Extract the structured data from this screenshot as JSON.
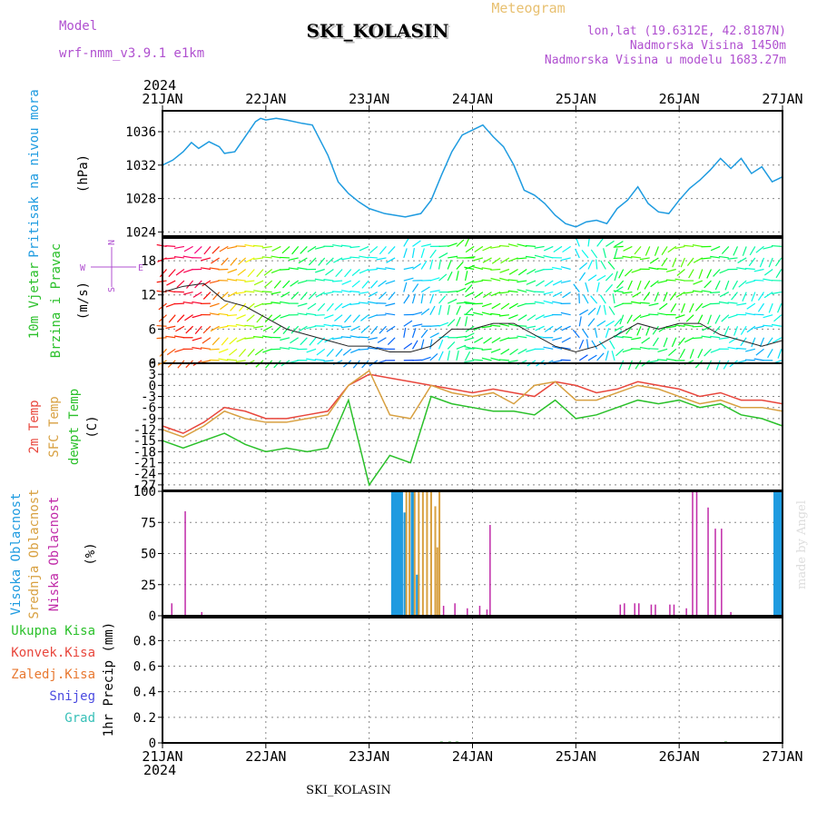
{
  "header": {
    "model_label": "Model",
    "model_name": "wrf-nmm_v3.9.1 e1km",
    "station": "SKI_KOLASIN",
    "product": "Meteogram",
    "lonlat": "lon,lat (19.6312E, 42.8187N)",
    "elevation": "Nadmorska Visina 1450m",
    "model_elevation": "Nadmorska Visina u modelu 1683.27m",
    "year_top": "2024",
    "year_bottom": "2024",
    "footer_station": "SKI_KOLASIN",
    "credit": "made by Angel"
  },
  "time_axis": {
    "labels": [
      "21JAN",
      "22JAN",
      "23JAN",
      "24JAN",
      "25JAN",
      "26JAN",
      "27JAN"
    ],
    "days": 6
  },
  "colors": {
    "pressure": "#1e9be0",
    "temp2m": "#e8463c",
    "sfc": "#d8a040",
    "dewpt": "#2ac02a",
    "high_cloud": "#1e9be0",
    "mid_cloud": "#d8a040",
    "low_cloud": "#c02aa8",
    "title_purple": "#b050d0",
    "meteogram_gold": "#e8c070"
  },
  "chart_data": [
    {
      "id": "pressure",
      "type": "line",
      "ylabel_lines": [
        "Pritisak na nivou mora",
        "(hPa)"
      ],
      "ylim": [
        1023.5,
        1038.5
      ],
      "yticks": [
        1024,
        1028,
        1032,
        1036
      ],
      "grid": true,
      "series": [
        {
          "x": [
            0,
            0.1,
            0.2,
            0.28,
            0.35,
            0.45,
            0.55,
            0.6,
            0.7,
            0.8,
            0.9,
            0.95,
            1.0,
            1.1,
            1.2,
            1.35,
            1.45,
            1.5,
            1.6,
            1.7,
            1.8,
            1.9,
            2.0,
            2.15,
            2.25,
            2.35,
            2.5,
            2.6,
            2.7,
            2.8,
            2.9,
            3.0,
            3.1,
            3.2,
            3.3,
            3.4,
            3.5,
            3.6,
            3.7,
            3.8,
            3.9,
            4.0,
            4.1,
            4.2,
            4.3,
            4.4,
            4.5,
            4.6,
            4.7,
            4.8,
            4.9,
            5.0,
            5.1,
            5.2,
            5.3,
            5.4,
            5.5,
            5.6,
            5.7,
            5.8,
            5.9,
            6.0
          ],
          "values": [
            1032.0,
            1032.6,
            1033.6,
            1034.7,
            1034.0,
            1034.8,
            1034.2,
            1033.4,
            1033.6,
            1035.4,
            1037.2,
            1037.6,
            1037.4,
            1037.6,
            1037.4,
            1037.0,
            1036.8,
            1035.6,
            1033.2,
            1030.0,
            1028.6,
            1027.6,
            1026.8,
            1026.2,
            1026.0,
            1025.8,
            1026.2,
            1027.8,
            1030.8,
            1033.6,
            1035.6,
            1036.2,
            1036.8,
            1035.4,
            1034.2,
            1032.0,
            1029.0,
            1028.4,
            1027.4,
            1026.0,
            1025.0,
            1024.6,
            1025.2,
            1025.4,
            1025.0,
            1026.8,
            1027.8,
            1029.4,
            1027.4,
            1026.4,
            1026.2,
            1027.8,
            1029.2,
            1030.2,
            1031.4,
            1032.8,
            1031.6,
            1032.8,
            1031.0,
            1031.8,
            1030.0,
            1030.6
          ]
        }
      ]
    },
    {
      "id": "wind",
      "type": "line",
      "ylabel_lines": [
        "10m Vjetar",
        "Brzina i Pravac",
        "(m/s)"
      ],
      "compass": {
        "n": "N",
        "w": "W",
        "e": "E",
        "s": "S"
      },
      "ylim": [
        0,
        22
      ],
      "yticks": [
        0,
        6,
        12,
        18
      ],
      "grid": true,
      "series": [
        {
          "name": "speed",
          "x": [
            0,
            0.2,
            0.4,
            0.6,
            0.8,
            1.0,
            1.2,
            1.4,
            1.6,
            1.8,
            2.0,
            2.2,
            2.4,
            2.6,
            2.8,
            3.0,
            3.2,
            3.4,
            3.6,
            3.8,
            4.0,
            4.2,
            4.4,
            4.6,
            4.8,
            5.0,
            5.2,
            5.4,
            5.6,
            5.8,
            6.0
          ],
          "values": [
            12.5,
            13.5,
            14,
            11,
            10,
            8,
            6,
            5,
            4,
            3,
            3,
            2,
            2,
            3,
            6,
            6,
            7,
            7,
            5,
            3,
            2,
            3,
            5,
            7,
            6,
            7,
            7,
            5,
            4,
            3,
            4
          ]
        }
      ]
    },
    {
      "id": "temperature",
      "type": "line",
      "ylabel_lines": [
        "2m Temp",
        "SFC Temp",
        "dewpt Temp",
        "(C)"
      ],
      "ylim": [
        -28.5,
        6
      ],
      "yticks": [
        -27,
        -24,
        -21,
        -18,
        -15,
        -12,
        -9,
        -6,
        -3,
        0,
        3,
        6
      ],
      "grid": true,
      "series": [
        {
          "name": "2m Temp",
          "x": [
            0,
            0.2,
            0.4,
            0.6,
            0.8,
            1.0,
            1.2,
            1.4,
            1.6,
            1.8,
            2.0,
            2.2,
            2.4,
            2.6,
            2.8,
            3.0,
            3.2,
            3.4,
            3.6,
            3.8,
            4.0,
            4.2,
            4.4,
            4.6,
            4.8,
            5.0,
            5.2,
            5.4,
            5.6,
            5.8,
            6.0
          ],
          "values": [
            -11,
            -13,
            -10,
            -6,
            -7,
            -9,
            -9,
            -8,
            -7,
            0,
            3,
            2,
            1,
            0,
            -1,
            -2,
            -1,
            -2,
            -3,
            1,
            0,
            -2,
            -1,
            1,
            0,
            -1,
            -3,
            -2,
            -4,
            -4,
            -5
          ]
        },
        {
          "name": "SFC Temp",
          "x": [
            0,
            0.2,
            0.4,
            0.6,
            0.8,
            1.0,
            1.2,
            1.4,
            1.6,
            1.8,
            2.0,
            2.2,
            2.4,
            2.6,
            2.8,
            3.0,
            3.2,
            3.4,
            3.6,
            3.8,
            4.0,
            4.2,
            4.4,
            4.6,
            4.8,
            5.0,
            5.2,
            5.4,
            5.6,
            5.8,
            6.0
          ],
          "values": [
            -12,
            -14,
            -11,
            -7,
            -9,
            -10,
            -10,
            -9,
            -8,
            0,
            4,
            -8,
            -9,
            0,
            -2,
            -3,
            -2,
            -5,
            0,
            1,
            -4,
            -4,
            -2,
            0,
            -1,
            -3,
            -5,
            -4,
            -6,
            -6,
            -7
          ]
        },
        {
          "name": "dewpt Temp",
          "x": [
            0,
            0.2,
            0.4,
            0.6,
            0.8,
            1.0,
            1.2,
            1.4,
            1.6,
            1.8,
            2.0,
            2.2,
            2.4,
            2.6,
            2.8,
            3.0,
            3.2,
            3.4,
            3.6,
            3.8,
            4.0,
            4.2,
            4.4,
            4.6,
            4.8,
            5.0,
            5.2,
            5.4,
            5.6,
            5.8,
            6.0
          ],
          "values": [
            -15,
            -17,
            -15,
            -13,
            -16,
            -18,
            -17,
            -18,
            -17,
            -4,
            -27,
            -19,
            -21,
            -3,
            -5,
            -6,
            -7,
            -7,
            -8,
            -4,
            -9,
            -8,
            -6,
            -4,
            -5,
            -4,
            -6,
            -5,
            -8,
            -9,
            -11
          ]
        }
      ]
    },
    {
      "id": "clouds",
      "type": "bar",
      "ylabel_lines": [
        "Visoka Oblacnost",
        "Srednja Oblacnost",
        "Niska Oblacnost",
        "(%)"
      ],
      "ylim": [
        0,
        100
      ],
      "yticks": [
        0,
        25,
        50,
        75,
        100
      ],
      "grid": true,
      "series": [
        {
          "name": "Visoka Oblacnost",
          "x": [
            2.23,
            2.25,
            2.27,
            2.29,
            2.31,
            2.35,
            2.42,
            2.47,
            3.12,
            5.93,
            5.95,
            5.97,
            5.99
          ],
          "values": [
            100,
            100,
            100,
            100,
            100,
            83,
            100,
            33,
            0,
            100,
            100,
            100,
            100
          ]
        },
        {
          "name": "Srednja Oblacnost",
          "x": [
            2.36,
            2.39,
            2.44,
            2.48,
            2.52,
            2.56,
            2.6,
            2.64,
            2.66,
            2.68
          ],
          "values": [
            100,
            100,
            100,
            100,
            100,
            100,
            100,
            88,
            55,
            100
          ]
        },
        {
          "name": "Niska Oblacnost",
          "x": [
            0.09,
            0.22,
            0.38,
            2.72,
            2.83,
            2.95,
            3.07,
            3.14,
            3.17,
            4.43,
            4.47,
            4.57,
            4.61,
            4.73,
            4.77,
            4.91,
            4.95,
            5.07,
            5.13,
            5.17,
            5.28,
            5.35,
            5.41,
            5.5
          ],
          "values": [
            10,
            84,
            3,
            8,
            10,
            6,
            8,
            5,
            73,
            9,
            10,
            10,
            10,
            9,
            9,
            9,
            9,
            6,
            100,
            100,
            87,
            70,
            70,
            3
          ]
        }
      ]
    },
    {
      "id": "precip",
      "type": "bar",
      "ylabel_lines": [
        "1hr Precip (mm)"
      ],
      "legend": [
        "Ukupna Kisa",
        "Konvek.Kisa",
        "Zaledj.Kisa",
        "Snijeg",
        "Grad"
      ],
      "ylim": [
        0,
        0.98
      ],
      "yticks": [
        0,
        0.2,
        0.4,
        0.6,
        0.8
      ],
      "ytick_labels": [
        "0",
        "0.2",
        "0.4",
        "0.6",
        "0.8"
      ],
      "grid": true,
      "series": [
        {
          "name": "Ukupna Kisa",
          "x": [
            2.7,
            2.78,
            2.85,
            5.45
          ],
          "values": [
            0.01,
            0.01,
            0.01,
            0.01
          ]
        }
      ]
    }
  ]
}
